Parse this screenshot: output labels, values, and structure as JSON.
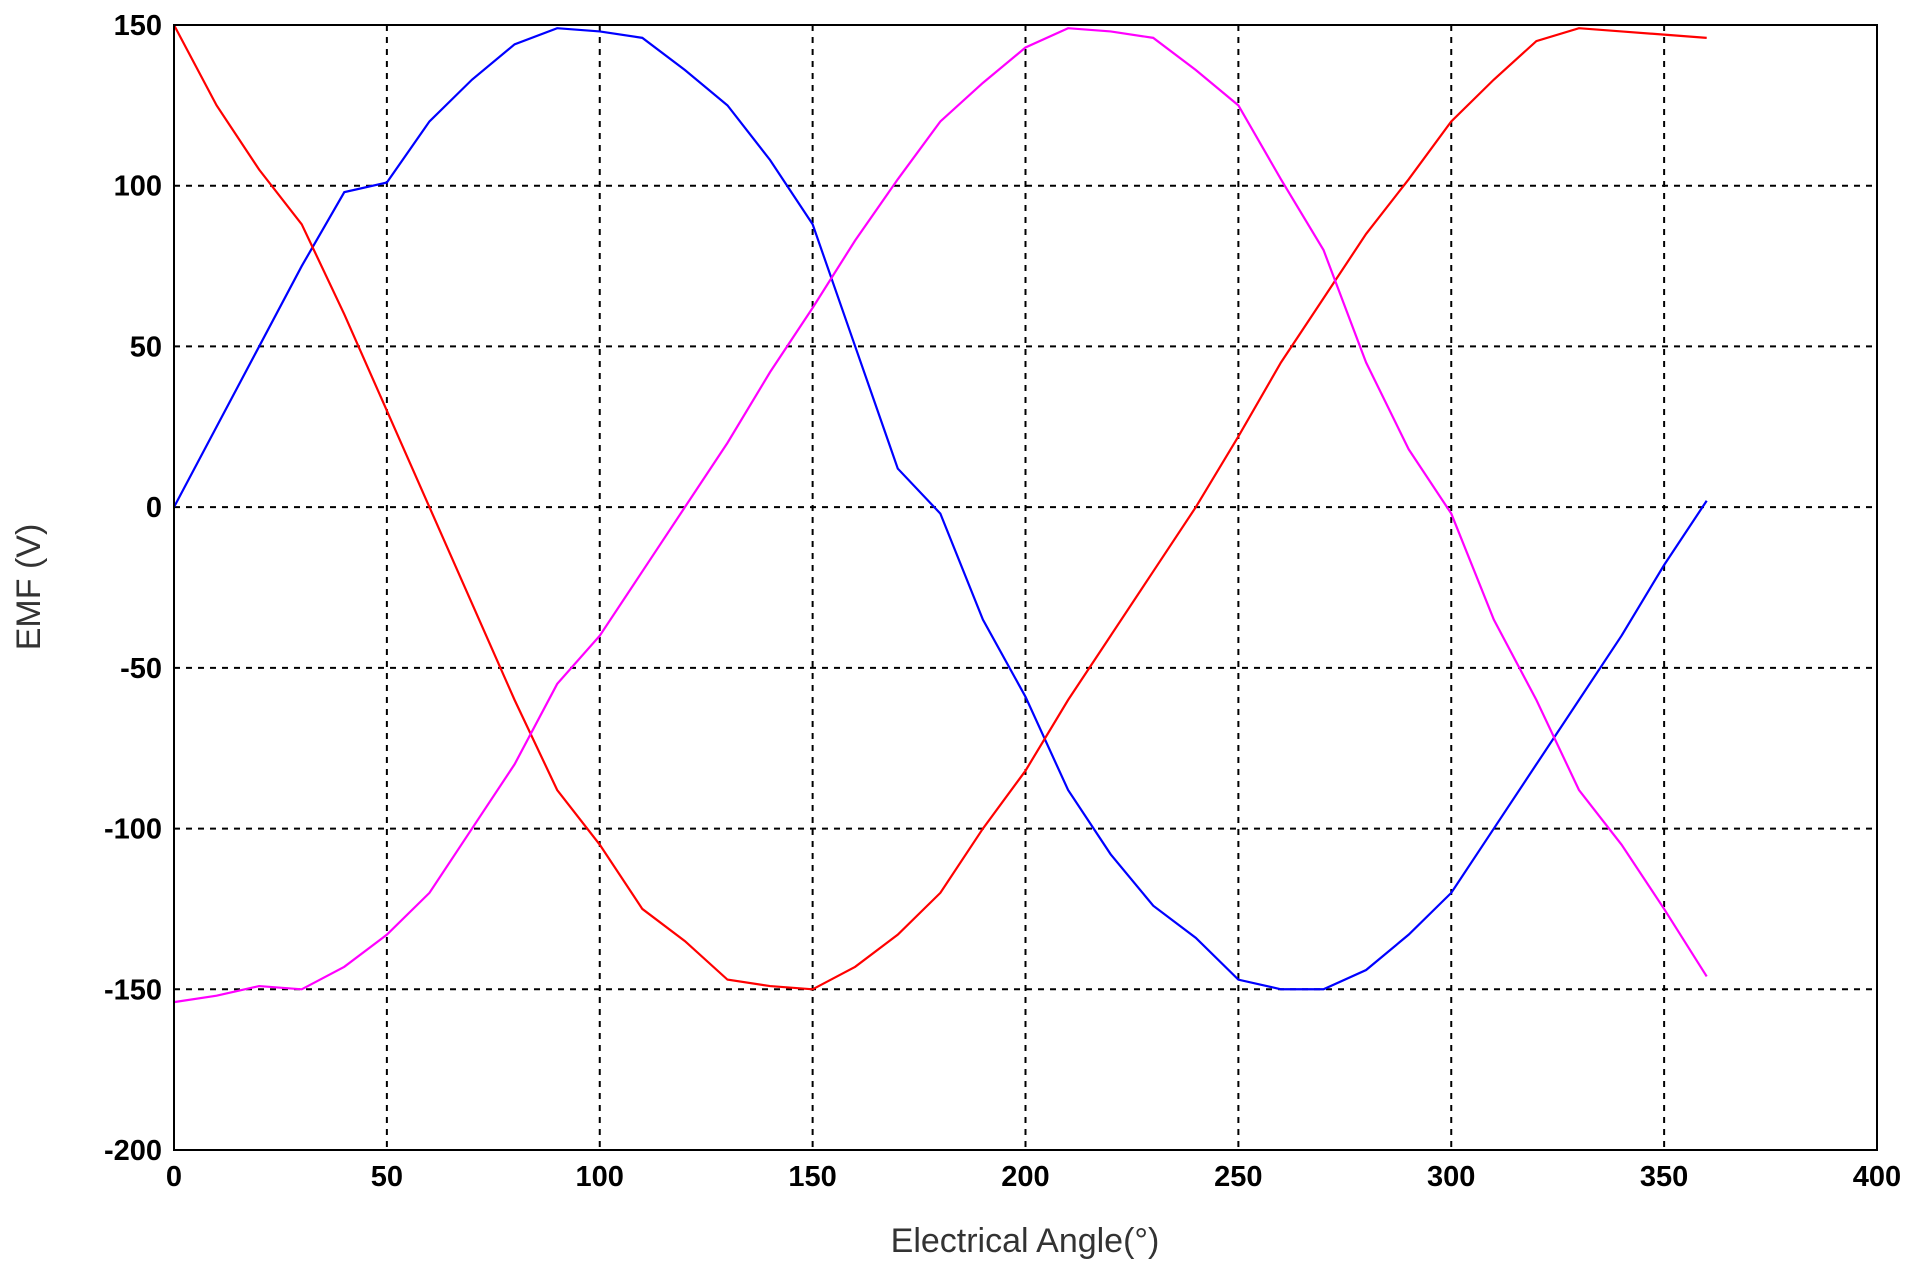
{
  "chart_data": {
    "type": "line",
    "x_label": "Electrical Angle(°)",
    "y_label": "EMF (V)",
    "x": [
      0,
      10,
      20,
      30,
      40,
      50,
      60,
      70,
      80,
      90,
      100,
      110,
      120,
      130,
      140,
      150,
      160,
      170,
      180,
      190,
      200,
      210,
      220,
      230,
      240,
      250,
      260,
      270,
      280,
      290,
      300,
      310,
      320,
      330,
      340,
      350,
      360
    ],
    "series": [
      {
        "color": "#0000ff",
        "values": [
          0,
          25,
          50,
          75,
          98,
          101,
          120,
          133,
          144,
          149,
          148,
          146,
          136,
          125,
          108,
          88,
          50,
          12,
          -2,
          -35,
          -59,
          -88,
          -108,
          -124,
          -134,
          -147,
          -150,
          -150,
          -144,
          -133,
          -120,
          -100,
          -80,
          -60,
          -40,
          -18,
          2
        ]
      },
      {
        "color": "#ff0000",
        "values": [
          150,
          125,
          105,
          88,
          60,
          30,
          0,
          -30,
          -60,
          -88,
          -105,
          -125,
          -135,
          -147,
          -149,
          -150,
          -143,
          -133,
          -120,
          -100,
          -82,
          -60,
          -40,
          -20,
          0,
          22,
          45,
          65,
          85,
          102,
          120,
          133,
          145,
          149,
          148,
          147,
          146
        ]
      },
      {
        "color": "#ff00ff",
        "values": [
          -154,
          -152,
          -149,
          -150,
          -143,
          -133,
          -120,
          -100,
          -80,
          -55,
          -40,
          -20,
          0,
          20,
          42,
          62,
          83,
          102,
          120,
          132,
          143,
          149,
          148,
          146,
          136,
          125,
          102,
          80,
          45,
          18,
          -2,
          -35,
          -60,
          -88,
          -105,
          -125,
          -146
        ]
      }
    ],
    "xlim": [
      0,
      400
    ],
    "xticks": [
      0,
      50,
      100,
      150,
      200,
      250,
      300,
      350,
      400
    ],
    "ylim": [
      -200,
      150
    ],
    "yticks": [
      -200,
      -150,
      -100,
      -50,
      0,
      50,
      100,
      150
    ],
    "grid": true
  }
}
